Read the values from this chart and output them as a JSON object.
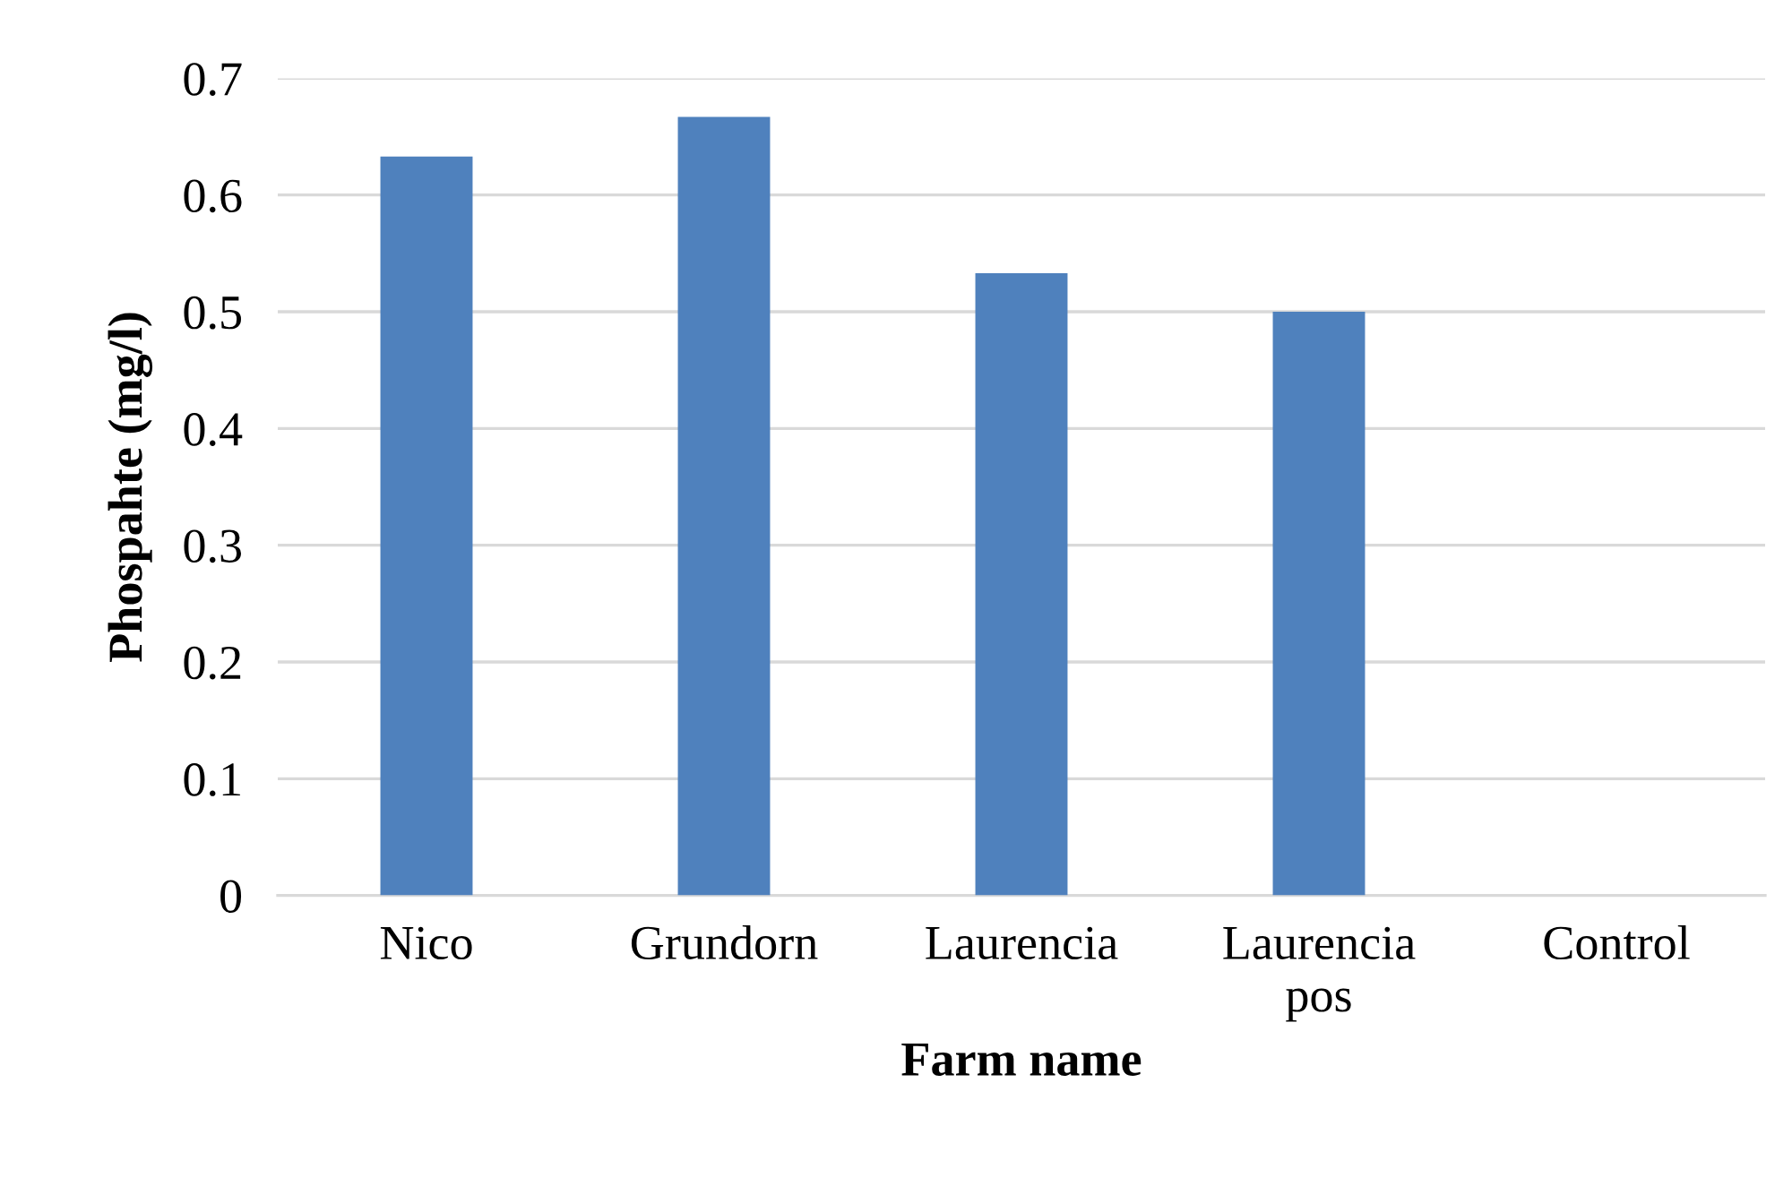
{
  "chart_data": {
    "type": "bar",
    "categories": [
      "Nico",
      "Grundorn",
      "Laurencia",
      "Laurencia pos",
      "Control"
    ],
    "values": [
      0.633,
      0.667,
      0.533,
      0.5,
      0
    ],
    "color": "#4f81bd",
    "xlabel": "Farm name",
    "ylabel": "Phospahte (mg/l)",
    "ylim": [
      0,
      0.7
    ],
    "yticks": [
      0,
      0.1,
      0.2,
      0.3,
      0.4,
      0.5,
      0.6,
      0.7
    ],
    "grid": "y",
    "legend": false
  }
}
